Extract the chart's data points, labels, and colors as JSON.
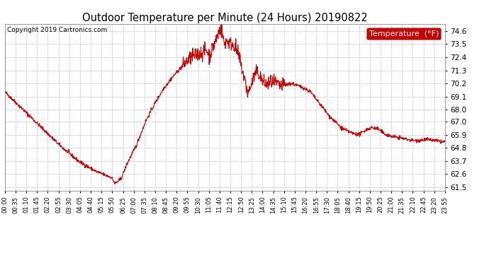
{
  "title": "Outdoor Temperature per Minute (24 Hours) 20190822",
  "copyright_text": "Copyright 2019 Cartronics.com",
  "legend_label": "Temperature  (°F)",
  "line_color": "#cc0000",
  "legend_bg_color": "#cc0000",
  "legend_text_color": "#ffffff",
  "background_color": "#ffffff",
  "grid_color": "#bbbbbb",
  "yticks": [
    61.5,
    62.6,
    63.7,
    64.8,
    65.9,
    67.0,
    68.0,
    69.1,
    70.2,
    71.3,
    72.4,
    73.5,
    74.6
  ],
  "ylim": [
    61.2,
    75.2
  ],
  "xtick_labels": [
    "00:00",
    "00:35",
    "01:10",
    "01:45",
    "02:20",
    "02:55",
    "03:30",
    "04:05",
    "04:40",
    "05:15",
    "05:50",
    "06:25",
    "07:00",
    "07:35",
    "08:10",
    "08:45",
    "09:20",
    "09:55",
    "10:30",
    "11:05",
    "11:40",
    "12:15",
    "12:50",
    "13:25",
    "14:00",
    "14:35",
    "15:10",
    "15:45",
    "16:20",
    "16:55",
    "17:30",
    "18:05",
    "18:40",
    "19:15",
    "19:50",
    "20:25",
    "21:00",
    "21:35",
    "22:10",
    "22:45",
    "23:20",
    "23:55"
  ],
  "num_points": 1440,
  "title_fontsize": 10.5,
  "copyright_fontsize": 6.5,
  "ytick_fontsize": 7.5,
  "xtick_fontsize": 6.0,
  "legend_fontsize": 8.0,
  "line_width": 0.8
}
